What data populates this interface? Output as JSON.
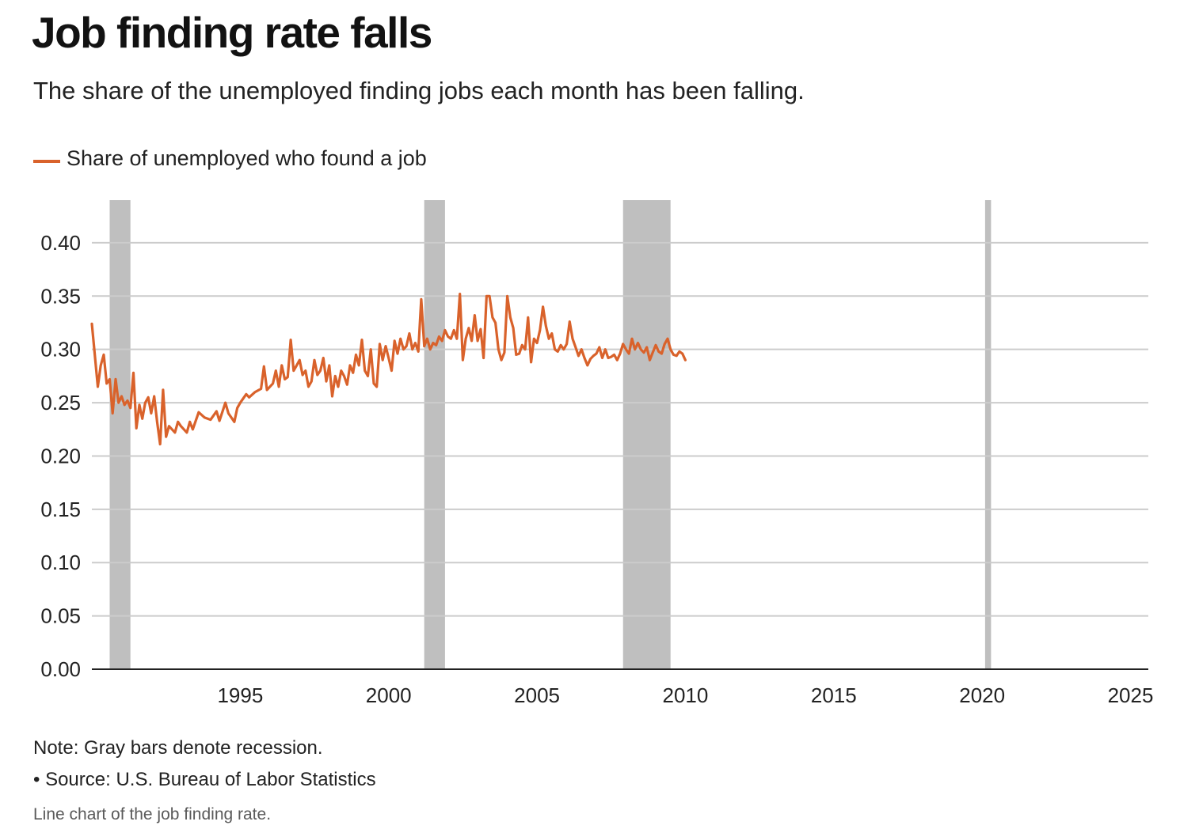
{
  "title": "Job finding rate falls",
  "subtitle": "The share of the unemployed finding jobs each month has been falling.",
  "note": "Note: Gray bars denote recession.",
  "source": "• Source: U.S. Bureau of Labor Statistics",
  "alt_text": "Line chart of the job finding rate.",
  "colors": {
    "line": "#d9622b",
    "recession": "#bfbfbf",
    "grid": "#cccccc",
    "axis": "#222222"
  },
  "chart_data": {
    "type": "line",
    "title": "Job finding rate falls",
    "xlabel": "",
    "ylabel": "",
    "xlim": [
      1990.0,
      2025.6
    ],
    "ylim": [
      0,
      0.44
    ],
    "x_ticks": [
      1995,
      2000,
      2005,
      2010,
      2015,
      2020,
      2025
    ],
    "x_tick_labels": [
      "1995",
      "2000",
      "2005",
      "2010",
      "2015",
      "2020",
      "2025"
    ],
    "y_ticks": [
      0.0,
      0.05,
      0.1,
      0.15,
      0.2,
      0.25,
      0.3,
      0.35,
      0.4
    ],
    "y_tick_labels": [
      "0.00",
      "0.05",
      "0.10",
      "0.15",
      "0.20",
      "0.25",
      "0.30",
      "0.35",
      "0.40"
    ],
    "grid": "horizontal",
    "legend_position": "top-left",
    "recessions": [
      [
        1990.6,
        1991.3
      ],
      [
        2001.2,
        2001.9
      ],
      [
        2007.9,
        2009.5
      ],
      [
        2020.1,
        2020.3
      ]
    ],
    "series": [
      {
        "name": "Share of unemployed who found a job",
        "color": "#d9622b",
        "points": [
          [
            1990.0,
            0.324
          ],
          [
            1990.2,
            0.265
          ],
          [
            1990.3,
            0.285
          ],
          [
            1990.4,
            0.295
          ],
          [
            1990.5,
            0.268
          ],
          [
            1990.6,
            0.272
          ],
          [
            1990.7,
            0.24
          ],
          [
            1990.8,
            0.272
          ],
          [
            1990.9,
            0.25
          ],
          [
            1991.0,
            0.256
          ],
          [
            1991.1,
            0.248
          ],
          [
            1991.2,
            0.252
          ],
          [
            1991.3,
            0.245
          ],
          [
            1991.4,
            0.278
          ],
          [
            1991.5,
            0.226
          ],
          [
            1991.6,
            0.248
          ],
          [
            1991.7,
            0.235
          ],
          [
            1991.8,
            0.25
          ],
          [
            1991.9,
            0.255
          ],
          [
            1992.0,
            0.24
          ],
          [
            1992.1,
            0.256
          ],
          [
            1992.2,
            0.232
          ],
          [
            1992.3,
            0.211
          ],
          [
            1992.4,
            0.262
          ],
          [
            1992.5,
            0.218
          ],
          [
            1992.6,
            0.228
          ],
          [
            1992.8,
            0.222
          ],
          [
            1992.9,
            0.232
          ],
          [
            1993.0,
            0.228
          ],
          [
            1993.2,
            0.222
          ],
          [
            1993.3,
            0.232
          ],
          [
            1993.4,
            0.225
          ],
          [
            1993.6,
            0.241
          ],
          [
            1993.8,
            0.236
          ],
          [
            1994.0,
            0.234
          ],
          [
            1994.2,
            0.242
          ],
          [
            1994.3,
            0.233
          ],
          [
            1994.5,
            0.25
          ],
          [
            1994.6,
            0.24
          ],
          [
            1994.8,
            0.232
          ],
          [
            1994.9,
            0.245
          ],
          [
            1995.0,
            0.25
          ],
          [
            1995.2,
            0.258
          ],
          [
            1995.3,
            0.255
          ],
          [
            1995.5,
            0.26
          ],
          [
            1995.7,
            0.263
          ],
          [
            1995.8,
            0.284
          ],
          [
            1995.9,
            0.262
          ],
          [
            1996.0,
            0.265
          ],
          [
            1996.1,
            0.268
          ],
          [
            1996.2,
            0.28
          ],
          [
            1996.3,
            0.265
          ],
          [
            1996.4,
            0.285
          ],
          [
            1996.5,
            0.272
          ],
          [
            1996.6,
            0.274
          ],
          [
            1996.7,
            0.309
          ],
          [
            1996.8,
            0.28
          ],
          [
            1996.9,
            0.285
          ],
          [
            1997.0,
            0.29
          ],
          [
            1997.1,
            0.276
          ],
          [
            1997.2,
            0.28
          ],
          [
            1997.3,
            0.265
          ],
          [
            1997.4,
            0.27
          ],
          [
            1997.5,
            0.29
          ],
          [
            1997.6,
            0.276
          ],
          [
            1997.7,
            0.28
          ],
          [
            1997.8,
            0.292
          ],
          [
            1997.9,
            0.27
          ],
          [
            1998.0,
            0.285
          ],
          [
            1998.1,
            0.256
          ],
          [
            1998.2,
            0.275
          ],
          [
            1998.3,
            0.265
          ],
          [
            1998.4,
            0.28
          ],
          [
            1998.5,
            0.275
          ],
          [
            1998.6,
            0.267
          ],
          [
            1998.7,
            0.285
          ],
          [
            1998.8,
            0.278
          ],
          [
            1998.9,
            0.295
          ],
          [
            1999.0,
            0.285
          ],
          [
            1999.1,
            0.309
          ],
          [
            1999.2,
            0.28
          ],
          [
            1999.3,
            0.275
          ],
          [
            1999.4,
            0.3
          ],
          [
            1999.5,
            0.268
          ],
          [
            1999.6,
            0.265
          ],
          [
            1999.7,
            0.305
          ],
          [
            1999.8,
            0.29
          ],
          [
            1999.9,
            0.303
          ],
          [
            2000.0,
            0.292
          ],
          [
            2000.1,
            0.28
          ],
          [
            2000.2,
            0.308
          ],
          [
            2000.3,
            0.296
          ],
          [
            2000.4,
            0.31
          ],
          [
            2000.5,
            0.3
          ],
          [
            2000.6,
            0.303
          ],
          [
            2000.7,
            0.315
          ],
          [
            2000.8,
            0.3
          ],
          [
            2000.9,
            0.306
          ],
          [
            2001.0,
            0.298
          ],
          [
            2001.1,
            0.347
          ],
          [
            2001.2,
            0.303
          ],
          [
            2001.3,
            0.31
          ],
          [
            2001.4,
            0.3
          ],
          [
            2001.5,
            0.306
          ],
          [
            2001.6,
            0.304
          ],
          [
            2001.7,
            0.312
          ],
          [
            2001.8,
            0.308
          ],
          [
            2001.9,
            0.318
          ],
          [
            2002.0,
            0.312
          ],
          [
            2002.1,
            0.31
          ],
          [
            2002.2,
            0.318
          ],
          [
            2002.3,
            0.31
          ],
          [
            2002.4,
            0.352
          ],
          [
            2002.5,
            0.29
          ],
          [
            2002.6,
            0.31
          ],
          [
            2002.7,
            0.32
          ],
          [
            2002.8,
            0.308
          ],
          [
            2002.9,
            0.332
          ],
          [
            2003.0,
            0.308
          ],
          [
            2003.1,
            0.319
          ],
          [
            2003.2,
            0.292
          ],
          [
            2003.3,
            0.35
          ],
          [
            2003.4,
            0.35
          ],
          [
            2003.5,
            0.33
          ],
          [
            2003.6,
            0.325
          ],
          [
            2003.7,
            0.3
          ],
          [
            2003.8,
            0.29
          ],
          [
            2003.9,
            0.297
          ],
          [
            2004.0,
            0.35
          ],
          [
            2004.1,
            0.33
          ],
          [
            2004.2,
            0.32
          ],
          [
            2004.3,
            0.295
          ],
          [
            2004.4,
            0.296
          ],
          [
            2004.5,
            0.304
          ],
          [
            2004.6,
            0.3
          ],
          [
            2004.7,
            0.33
          ],
          [
            2004.8,
            0.288
          ],
          [
            2004.9,
            0.31
          ],
          [
            2005.0,
            0.306
          ],
          [
            2005.1,
            0.318
          ],
          [
            2005.2,
            0.34
          ],
          [
            2005.3,
            0.322
          ],
          [
            2005.4,
            0.31
          ],
          [
            2005.5,
            0.315
          ],
          [
            2005.6,
            0.3
          ],
          [
            2005.7,
            0.298
          ],
          [
            2005.8,
            0.304
          ],
          [
            2005.9,
            0.3
          ],
          [
            2006.0,
            0.305
          ],
          [
            2006.1,
            0.326
          ],
          [
            2006.2,
            0.31
          ],
          [
            2006.3,
            0.302
          ],
          [
            2006.4,
            0.294
          ],
          [
            2006.5,
            0.3
          ],
          [
            2006.6,
            0.292
          ],
          [
            2006.7,
            0.285
          ],
          [
            2006.8,
            0.291
          ],
          [
            2006.9,
            0.294
          ],
          [
            2007.0,
            0.296
          ],
          [
            2007.1,
            0.302
          ],
          [
            2007.2,
            0.292
          ],
          [
            2007.3,
            0.3
          ],
          [
            2007.4,
            0.292
          ],
          [
            2007.5,
            0.293
          ],
          [
            2007.6,
            0.295
          ],
          [
            2007.7,
            0.29
          ],
          [
            2007.8,
            0.296
          ],
          [
            2007.9,
            0.305
          ],
          [
            2008.0,
            0.3
          ],
          [
            2008.1,
            0.296
          ],
          [
            2008.2,
            0.31
          ],
          [
            2008.3,
            0.3
          ],
          [
            2008.4,
            0.306
          ],
          [
            2008.5,
            0.3
          ],
          [
            2008.6,
            0.297
          ],
          [
            2008.7,
            0.302
          ],
          [
            2008.8,
            0.29
          ],
          [
            2008.9,
            0.297
          ],
          [
            2009.0,
            0.304
          ],
          [
            2009.1,
            0.298
          ],
          [
            2009.2,
            0.296
          ],
          [
            2009.3,
            0.305
          ],
          [
            2009.4,
            0.31
          ],
          [
            2009.5,
            0.3
          ],
          [
            2009.6,
            0.295
          ],
          [
            2009.7,
            0.294
          ],
          [
            2009.8,
            0.298
          ],
          [
            2009.9,
            0.296
          ],
          [
            2010.0,
            0.29
          ]
        ]
      }
    ]
  }
}
